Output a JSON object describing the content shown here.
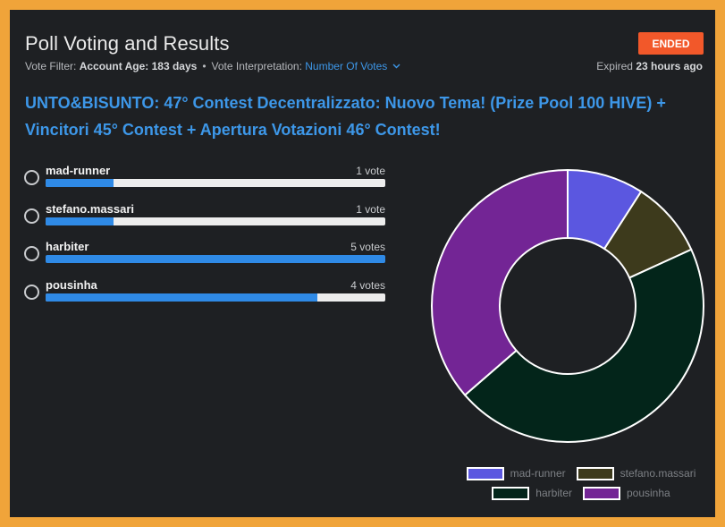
{
  "header": {
    "title": "Poll Voting and Results",
    "status_badge": "ENDED",
    "filter_label": "Vote Filter:",
    "filter_value": "Account Age: 183 days",
    "separator": "•",
    "interpretation_label": "Vote Interpretation:",
    "interpretation_value": "Number Of Votes",
    "expired_prefix": "Expired",
    "expired_value": "23 hours ago"
  },
  "post_title": "UNTO&BISUNTO: 47° Contest Decentralizzato: Nuovo Tema! (Prize Pool 100 HIVE) + Vincitori 45° Contest + Apertura Votazioni 46° Contest!",
  "options": [
    {
      "label": "mad-runner",
      "votes_text": "1 vote",
      "votes": 1
    },
    {
      "label": "stefano.massari",
      "votes_text": "1 vote",
      "votes": 1
    },
    {
      "label": "harbiter",
      "votes_text": "5 votes",
      "votes": 5
    },
    {
      "label": "pousinha",
      "votes_text": "4 votes",
      "votes": 4
    }
  ],
  "colors": {
    "accent": "#3d97e8",
    "badge": "#f2582a",
    "frame": "#f0a43a"
  },
  "chart_data": {
    "type": "pie",
    "categories": [
      "mad-runner",
      "stefano.massari",
      "harbiter",
      "pousinha"
    ],
    "values": [
      1,
      1,
      5,
      4
    ],
    "colors": [
      "#5b57e0",
      "#3d3a1c",
      "#03251a",
      "#732595"
    ],
    "legend": "bottom",
    "donut": true
  }
}
